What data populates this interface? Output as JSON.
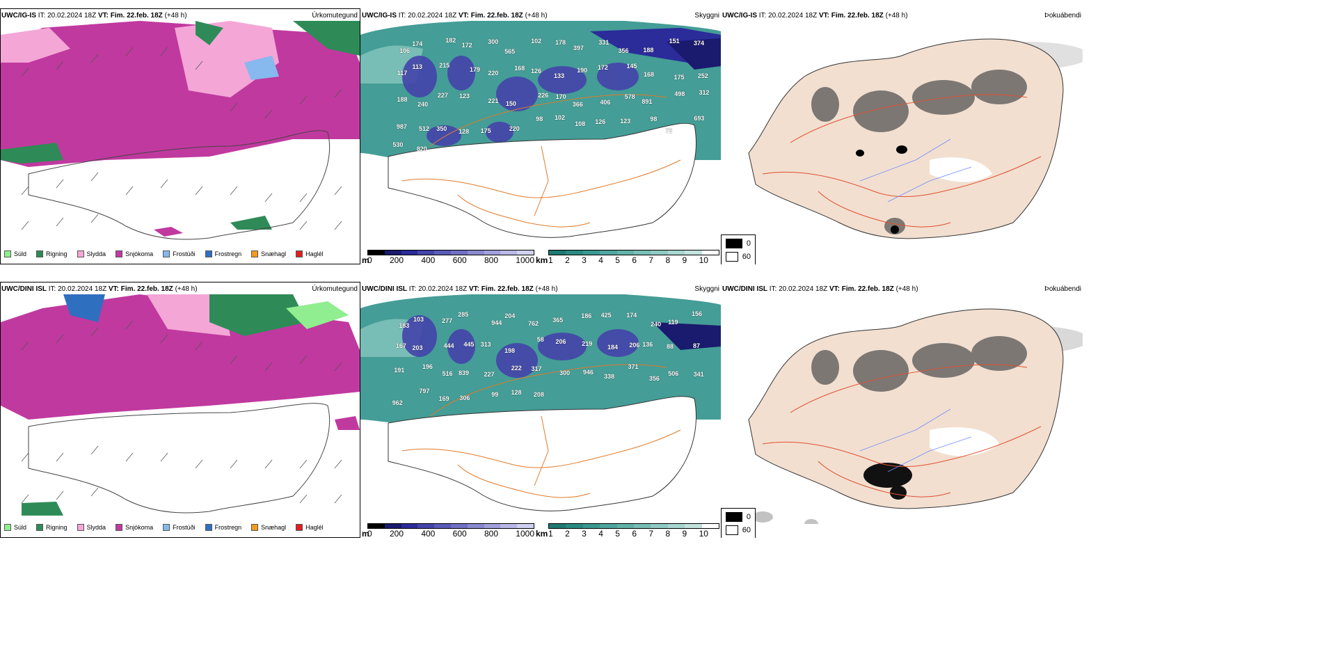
{
  "rows": [
    {
      "model": "UWC/IG-IS",
      "run": "IT: 20.02.2024 18Z",
      "vt_label": "VT:",
      "vt": "Fim. 22.feb. 18Z",
      "lead": "(+48 h)"
    },
    {
      "model": "UWC/DINI ISL",
      "run": "IT: 20.02.2024 18Z",
      "vt_label": "VT:",
      "vt": "Fim. 22.feb. 18Z",
      "lead": "(+48 h)"
    }
  ],
  "panel_titles": {
    "precip": "Úrkomutegund",
    "cloud": "Skyggni",
    "fog": "Þokuábendi"
  },
  "precip_legend": [
    {
      "label": "Súld",
      "color": "#90ee90"
    },
    {
      "label": "Rigning",
      "color": "#2e8b57"
    },
    {
      "label": "Slydda",
      "color": "#f4a6d7"
    },
    {
      "label": "Snjókoma",
      "color": "#c0399f"
    },
    {
      "label": "Frostúði",
      "color": "#87b8ee"
    },
    {
      "label": "Frostregn",
      "color": "#2f6fbf"
    },
    {
      "label": "Snæhagl",
      "color": "#f39a1f"
    },
    {
      "label": "Haglél",
      "color": "#e02020"
    }
  ],
  "cloudbase_bar": {
    "unit": "m",
    "ticks": [
      "0",
      "200",
      "400",
      "600",
      "800",
      "1000"
    ],
    "colors": [
      "#000000",
      "#1a1a6e",
      "#2b2b9a",
      "#4444aa",
      "#5a5ab8",
      "#7070c4",
      "#8a8ad0",
      "#a0a0dc",
      "#b8b8e6",
      "#d0d0f0"
    ]
  },
  "visibility_bar": {
    "unit": "km",
    "ticks": [
      "1",
      "2",
      "3",
      "4",
      "5",
      "6",
      "7",
      "8",
      "9",
      "10"
    ],
    "colors": [
      "#1f7a72",
      "#2a8a82",
      "#3a9890",
      "#4ea69e",
      "#62b2aa",
      "#78beb6",
      "#90cac4",
      "#a8d6d0",
      "#c2e2de",
      "#ffffff"
    ]
  },
  "fog_legend": [
    {
      "label": "0",
      "color": "#000000"
    },
    {
      "label": "60",
      "color": "#ffffff"
    }
  ],
  "cloud_labels_top": [
    "106",
    "174",
    "182",
    "172",
    "300",
    "565",
    "102",
    "178",
    "397",
    "331",
    "356",
    "188",
    "151",
    "374",
    "117",
    "113",
    "215",
    "179",
    "220",
    "168",
    "126",
    "133",
    "190",
    "172",
    "145",
    "168",
    "175",
    "252",
    "188",
    "240",
    "227",
    "123",
    "221",
    "150",
    "226",
    "170",
    "366",
    "406",
    "578",
    "891",
    "498",
    "312",
    "987",
    "512",
    "350",
    "128",
    "175",
    "220",
    "98",
    "102",
    "108",
    "126",
    "123",
    "98",
    "72",
    "693",
    "530",
    "820"
  ],
  "cloud_labels_bottom": [
    "183",
    "103",
    "277",
    "285",
    "944",
    "204",
    "762",
    "365",
    "186",
    "425",
    "174",
    "240",
    "119",
    "156",
    "167",
    "203",
    "444",
    "445",
    "313",
    "198",
    "58",
    "206",
    "219",
    "184",
    "206",
    "136",
    "88",
    "87",
    "191",
    "196",
    "516",
    "839",
    "227",
    "222",
    "317",
    "300",
    "946",
    "338",
    "371",
    "356",
    "506",
    "341",
    "962",
    "797",
    "169",
    "306",
    "99",
    "128",
    "208"
  ]
}
